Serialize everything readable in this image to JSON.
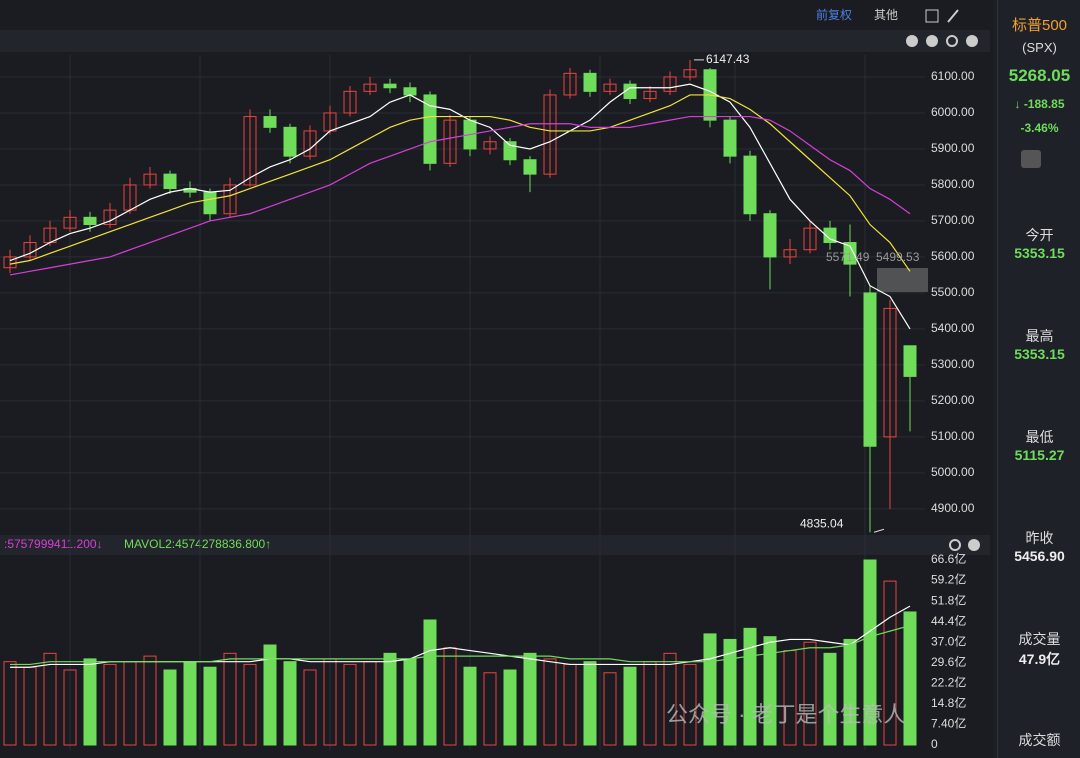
{
  "toolbar": {
    "adjust": "前复权",
    "other": "其他"
  },
  "sidebar": {
    "name": "标普500",
    "code": "(SPX)",
    "price": "5268.05",
    "change": "-188.85",
    "change_pct": "-3.46%",
    "fields": [
      {
        "label": "今开",
        "value": "5353.15"
      },
      {
        "label": "最高",
        "value": "5353.15"
      },
      {
        "label": "最低",
        "value": "5115.27"
      },
      {
        "label": "昨收",
        "value": "5456.90"
      },
      {
        "label": "成交量",
        "value": "47.9亿"
      },
      {
        "label": "成交额",
        "value": ""
      }
    ]
  },
  "volume_header": {
    "mavol1": ":5757999411.200↓",
    "mavol2": "MAVOL2:4574278836.800↑"
  },
  "watermark": "公众号 · 老丁是个生意人",
  "chart_data": {
    "type": "candlestick",
    "ylim": [
      4833,
      6161
    ],
    "yticks": [
      {
        "value": 4900,
        "label": "4900.00"
      },
      {
        "value": 5000,
        "label": "5000.00"
      },
      {
        "value": 5100,
        "label": "5100.00"
      },
      {
        "value": 5200,
        "label": "5200.00"
      },
      {
        "value": 5300,
        "label": "5300.00"
      },
      {
        "value": 5400,
        "label": "5400.00"
      },
      {
        "value": 5500,
        "label": "5500.00"
      },
      {
        "value": 5600,
        "label": "5600.00"
      },
      {
        "value": 5700,
        "label": "5700.00"
      },
      {
        "value": 5800,
        "label": "5800.00"
      },
      {
        "value": 5900,
        "label": "5900.00"
      },
      {
        "value": 6000,
        "label": "6000.00"
      },
      {
        "value": 6100,
        "label": "6100.00"
      }
    ],
    "up_color": "#e8453c",
    "down_color": "#6fdc5a",
    "grid": true,
    "candles": [
      {
        "open": 5570,
        "high": 5620,
        "low": 5555,
        "close": 5600
      },
      {
        "open": 5600,
        "high": 5660,
        "low": 5590,
        "close": 5640
      },
      {
        "open": 5640,
        "high": 5700,
        "low": 5630,
        "close": 5680
      },
      {
        "open": 5680,
        "high": 5730,
        "low": 5670,
        "close": 5710
      },
      {
        "open": 5710,
        "high": 5725,
        "low": 5670,
        "close": 5690
      },
      {
        "open": 5690,
        "high": 5750,
        "low": 5680,
        "close": 5730
      },
      {
        "open": 5730,
        "high": 5820,
        "low": 5720,
        "close": 5800
      },
      {
        "open": 5800,
        "high": 5850,
        "low": 5790,
        "close": 5830
      },
      {
        "open": 5830,
        "high": 5840,
        "low": 5775,
        "close": 5790
      },
      {
        "open": 5790,
        "high": 5810,
        "low": 5765,
        "close": 5780
      },
      {
        "open": 5780,
        "high": 5790,
        "low": 5700,
        "close": 5720
      },
      {
        "open": 5720,
        "high": 5820,
        "low": 5710,
        "close": 5800
      },
      {
        "open": 5800,
        "high": 6010,
        "low": 5795,
        "close": 5990
      },
      {
        "open": 5990,
        "high": 6010,
        "low": 5945,
        "close": 5960
      },
      {
        "open": 5960,
        "high": 5970,
        "low": 5860,
        "close": 5880
      },
      {
        "open": 5880,
        "high": 5965,
        "low": 5870,
        "close": 5950
      },
      {
        "open": 5950,
        "high": 6020,
        "low": 5940,
        "close": 6000
      },
      {
        "open": 6000,
        "high": 6075,
        "low": 5990,
        "close": 6060
      },
      {
        "open": 6060,
        "high": 6100,
        "low": 6050,
        "close": 6080
      },
      {
        "open": 6080,
        "high": 6095,
        "low": 6055,
        "close": 6070
      },
      {
        "open": 6070,
        "high": 6085,
        "low": 6030,
        "close": 6050
      },
      {
        "open": 6050,
        "high": 6060,
        "low": 5840,
        "close": 5860
      },
      {
        "open": 5860,
        "high": 5995,
        "low": 5850,
        "close": 5980
      },
      {
        "open": 5980,
        "high": 5990,
        "low": 5880,
        "close": 5900
      },
      {
        "open": 5900,
        "high": 5935,
        "low": 5885,
        "close": 5920
      },
      {
        "open": 5920,
        "high": 5930,
        "low": 5855,
        "close": 5870
      },
      {
        "open": 5870,
        "high": 5880,
        "low": 5780,
        "close": 5830
      },
      {
        "open": 5830,
        "high": 6065,
        "low": 5820,
        "close": 6050
      },
      {
        "open": 6050,
        "high": 6125,
        "low": 6040,
        "close": 6110
      },
      {
        "open": 6110,
        "high": 6120,
        "low": 6045,
        "close": 6060
      },
      {
        "open": 6060,
        "high": 6095,
        "low": 6050,
        "close": 6080
      },
      {
        "open": 6080,
        "high": 6090,
        "low": 6025,
        "close": 6040
      },
      {
        "open": 6040,
        "high": 6075,
        "low": 6030,
        "close": 6060
      },
      {
        "open": 6060,
        "high": 6115,
        "low": 6050,
        "close": 6100
      },
      {
        "open": 6100,
        "high": 6147.43,
        "low": 6090,
        "close": 6120
      },
      {
        "open": 6120,
        "high": 6125,
        "low": 5960,
        "close": 5980
      },
      {
        "open": 5980,
        "high": 5990,
        "low": 5860,
        "close": 5880
      },
      {
        "open": 5880,
        "high": 5895,
        "low": 5700,
        "close": 5720
      },
      {
        "open": 5720,
        "high": 5730,
        "low": 5510,
        "close": 5600
      },
      {
        "open": 5600,
        "high": 5650,
        "low": 5580,
        "close": 5620
      },
      {
        "open": 5620,
        "high": 5700,
        "low": 5610,
        "close": 5680
      },
      {
        "open": 5680,
        "high": 5700,
        "low": 5620,
        "close": 5640
      },
      {
        "open": 5640,
        "high": 5690,
        "low": 5490,
        "close": 5580
      },
      {
        "open": 5500,
        "high": 5520,
        "low": 4835.04,
        "close": 5074
      },
      {
        "open": 5100,
        "high": 5480,
        "low": 4900,
        "close": 5456.9
      },
      {
        "open": 5353.15,
        "high": 5353.15,
        "low": 5115.27,
        "close": 5268.05
      }
    ],
    "ma_lines": [
      {
        "color": "#ffffff",
        "values": [
          5590,
          5610,
          5640,
          5665,
          5680,
          5700,
          5730,
          5760,
          5780,
          5790,
          5780,
          5785,
          5820,
          5850,
          5870,
          5900,
          5950,
          5970,
          5990,
          6030,
          6050,
          6020,
          6010,
          5980,
          5960,
          5910,
          5900,
          5920,
          5950,
          5980,
          6030,
          6070,
          6070,
          6070,
          6080,
          6060,
          6030,
          5960,
          5860,
          5760,
          5700,
          5650,
          5630,
          5520,
          5490,
          5400
        ]
      },
      {
        "color": "#f2e33a",
        "values": [
          5580,
          5590,
          5610,
          5630,
          5650,
          5670,
          5690,
          5710,
          5730,
          5750,
          5760,
          5770,
          5790,
          5810,
          5830,
          5850,
          5870,
          5900,
          5930,
          5960,
          5980,
          5990,
          5990,
          5990,
          5990,
          5980,
          5960,
          5950,
          5950,
          5950,
          5960,
          5980,
          6000,
          6020,
          6050,
          6050,
          6040,
          6010,
          5970,
          5920,
          5870,
          5820,
          5770,
          5690,
          5640,
          5560
        ]
      },
      {
        "color": "#d63fd6",
        "values": [
          5550,
          5560,
          5570,
          5580,
          5590,
          5600,
          5620,
          5640,
          5660,
          5680,
          5700,
          5710,
          5720,
          5740,
          5760,
          5780,
          5800,
          5830,
          5860,
          5880,
          5900,
          5920,
          5930,
          5940,
          5950,
          5960,
          5970,
          5970,
          5970,
          5960,
          5960,
          5960,
          5970,
          5980,
          5990,
          5990,
          5990,
          5990,
          5980,
          5950,
          5910,
          5870,
          5840,
          5790,
          5760,
          5720
        ]
      }
    ],
    "annotations": [
      {
        "text": "6147.43",
        "value": 6147.43,
        "index": 34
      },
      {
        "text": "4835.04",
        "value": 4835.04,
        "index": 43
      }
    ],
    "box_labels": [
      "5571.49",
      "5499.53"
    ],
    "volume": {
      "ylim": [
        0,
        68.4
      ],
      "yticks": [
        0,
        {
          "value": 7.4,
          "label": "7.40亿"
        },
        {
          "value": 14.8,
          "label": "14.8亿"
        },
        {
          "value": 22.2,
          "label": "22.2亿"
        },
        {
          "value": 29.6,
          "label": "29.6亿"
        },
        {
          "value": 37.0,
          "label": "37.0亿"
        },
        {
          "value": 44.4,
          "label": "44.4亿"
        },
        {
          "value": 51.8,
          "label": "51.8亿"
        },
        {
          "value": 59.2,
          "label": "59.2亿"
        },
        {
          "value": 66.6,
          "label": "66.6亿"
        }
      ],
      "values": [
        30,
        28,
        33,
        27,
        31,
        29,
        30,
        32,
        27,
        30,
        28,
        33,
        29,
        36,
        30,
        27,
        31,
        29,
        30,
        33,
        31,
        45,
        35,
        28,
        26,
        27,
        33,
        31,
        29,
        30,
        26,
        28,
        30,
        33,
        29,
        40,
        38,
        42,
        39,
        34,
        37,
        33,
        38,
        66.6,
        59,
        47.9
      ],
      "ma_lines": [
        {
          "color": "#ffffff",
          "values": [
            28,
            28,
            29,
            29,
            29,
            30,
            30,
            30,
            30,
            30,
            30,
            30,
            30,
            31,
            31,
            30,
            30,
            30,
            30,
            30,
            31,
            34,
            35,
            34,
            33,
            32,
            31,
            30,
            29,
            29,
            29,
            29,
            29,
            29,
            30,
            31,
            33,
            35,
            37,
            38,
            38,
            37,
            36,
            41,
            46,
            50
          ]
        },
        {
          "color": "#6fdc5a",
          "values": [
            29,
            29,
            30,
            30,
            30,
            30,
            30,
            30,
            30,
            30,
            30,
            31,
            31,
            31,
            31,
            31,
            31,
            31,
            31,
            31,
            31,
            32,
            32,
            32,
            32,
            32,
            32,
            32,
            31,
            31,
            31,
            30,
            30,
            30,
            30,
            30,
            31,
            32,
            33,
            34,
            35,
            35,
            36,
            39,
            41,
            43
          ]
        }
      ]
    }
  }
}
